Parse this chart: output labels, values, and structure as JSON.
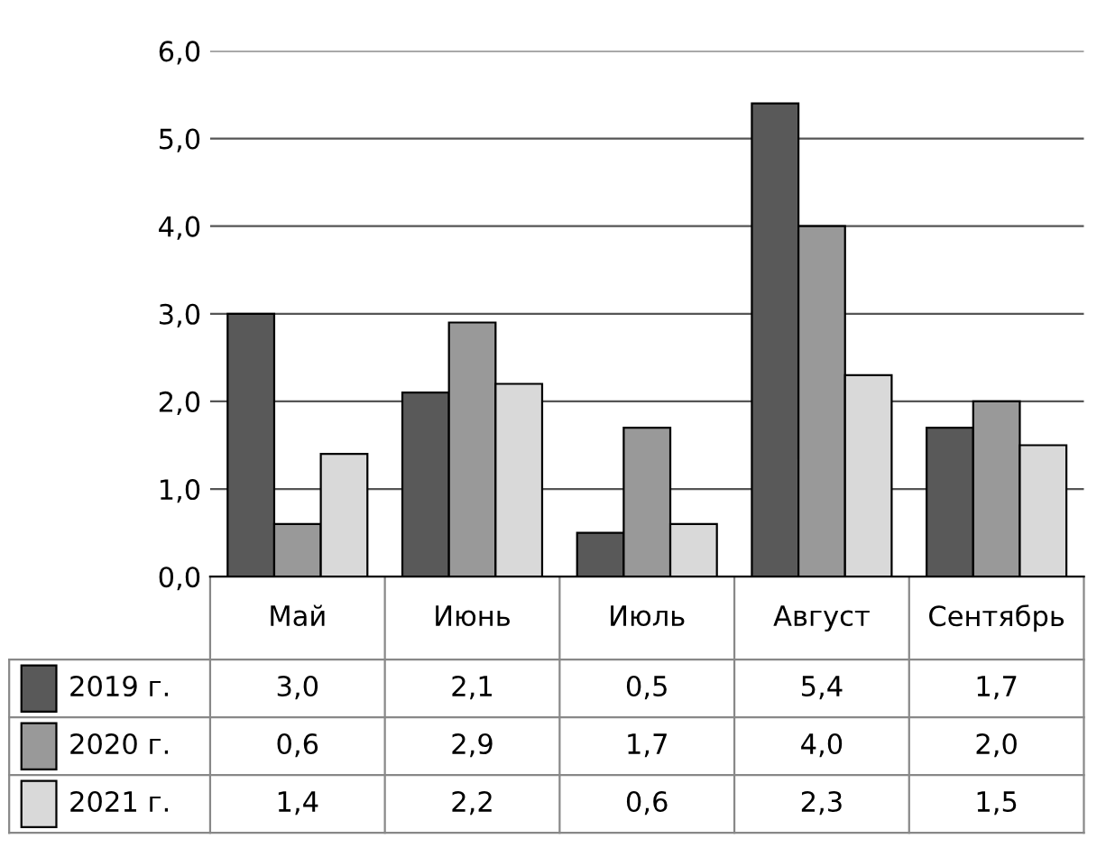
{
  "chart_data": {
    "type": "bar",
    "categories": [
      "Май",
      "Июнь",
      "Июль",
      "Август",
      "Сентябрь"
    ],
    "series": [
      {
        "name": "2019 г.",
        "color": "#595959",
        "values": [
          3.0,
          2.1,
          0.5,
          5.4,
          1.7
        ],
        "value_labels": [
          "3,0",
          "2,1",
          "0,5",
          "5,4",
          "1,7"
        ]
      },
      {
        "name": "2020 г.",
        "color": "#999999",
        "values": [
          0.6,
          2.9,
          1.7,
          4.0,
          2.0
        ],
        "value_labels": [
          "0,6",
          "2,9",
          "1,7",
          "4,0",
          "2,0"
        ]
      },
      {
        "name": "2021 г.",
        "color": "#d9d9d9",
        "values": [
          1.4,
          2.2,
          0.6,
          2.3,
          1.5
        ],
        "value_labels": [
          "1,4",
          "2,2",
          "0,6",
          "2,3",
          "1,5"
        ]
      }
    ],
    "ylim": [
      0,
      6
    ],
    "yticks": [
      {
        "value": 0,
        "label": "0,0"
      },
      {
        "value": 1,
        "label": "1,0"
      },
      {
        "value": 2,
        "label": "2,0"
      },
      {
        "value": 3,
        "label": "3,0"
      },
      {
        "value": 4,
        "label": "4,0"
      },
      {
        "value": 5,
        "label": "5,0"
      },
      {
        "value": 6,
        "label": "6,0"
      }
    ],
    "grid": "y",
    "legend": "bottom left"
  }
}
